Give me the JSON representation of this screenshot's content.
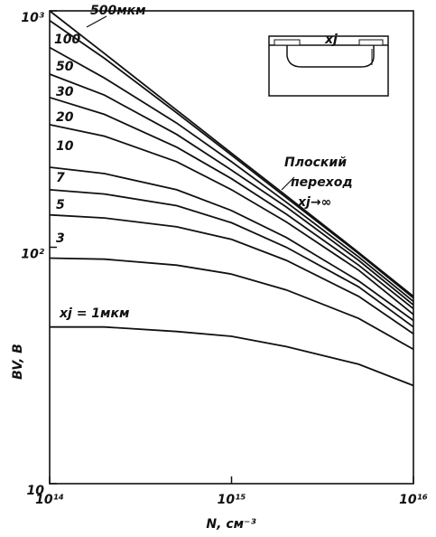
{
  "chart_data": {
    "type": "line",
    "log_x": true,
    "log_y": true,
    "x_label": "N, см⁻³",
    "y_label": "BV, B",
    "x": [
      100000000000000.0,
      200000000000000.0,
      500000000000000.0,
      1000000000000000.0,
      2000000000000000.0,
      5000000000000000.0,
      1e+16
    ],
    "xlim": [
      100000000000000.0,
      1e+16
    ],
    "xticks": [
      {
        "value": 100000000000000.0,
        "label": "10¹⁴"
      },
      {
        "value": 1000000000000000.0,
        "label": "10¹⁵"
      },
      {
        "value": 1e+16,
        "label": "10¹⁶"
      }
    ],
    "ylim": [
      10,
      1000
    ],
    "yticks": [
      10,
      {
        "value": 100,
        "label": "10²"
      },
      {
        "value": 1000,
        "label": "10³"
      }
    ],
    "color": "#111111",
    "annotation": [
      "Плоский",
      "переход",
      "xj→∞"
    ],
    "inset_label": "xj",
    "series": [
      {
        "values": [
          1000,
          660,
          380,
          250,
          165,
          95,
          62
        ]
      },
      {
        "name": "500мкм",
        "values": [
          910,
          630,
          370,
          245,
          162,
          94,
          61
        ]
      },
      {
        "name": "100",
        "values": [
          700,
          520,
          335,
          230,
          155,
          91,
          59
        ]
      },
      {
        "name": "50",
        "values": [
          540,
          440,
          300,
          212,
          148,
          88,
          57
        ]
      },
      {
        "name": "30",
        "values": [
          430,
          365,
          265,
          195,
          138,
          84,
          55
        ]
      },
      {
        "name": "20",
        "values": [
          330,
          295,
          230,
          175,
          128,
          80,
          52
        ]
      },
      {
        "name": "10",
        "values": [
          218,
          205,
          175,
          143,
          110,
          72,
          49
        ]
      },
      {
        "name": "7",
        "values": [
          175,
          168,
          150,
          127,
          100,
          68,
          46
        ]
      },
      {
        "name": "5",
        "values": [
          137,
          133,
          122,
          108,
          88,
          62,
          43
        ]
      },
      {
        "name": "3",
        "values": [
          90,
          89,
          84,
          77,
          66,
          50,
          37
        ]
      },
      {
        "name": "xj = 1мкм",
        "values": [
          46,
          46,
          44,
          42,
          38,
          32,
          26
        ]
      }
    ]
  }
}
